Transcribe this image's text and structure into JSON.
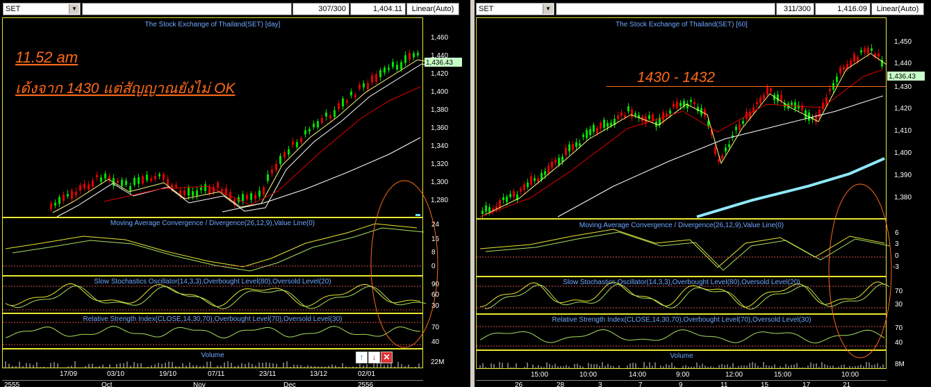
{
  "left": {
    "symbol": "SET",
    "count": "307/300",
    "price": "1,404.11",
    "scale": "Linear(Auto)",
    "title": "The Stock Exchange of Thailand(SET) [day]",
    "note_time": "11.52 am",
    "note_text": "เด้งจาก 1430 แต่สัญญาณยังไม่ OK",
    "last_price": "1,436.43",
    "price_ticks": [
      "1,460",
      "1,440",
      "1,420",
      "1,400",
      "1,380",
      "1,360",
      "1,340",
      "1,320",
      "1,300",
      "1,280"
    ],
    "macd_label": "Moving Average Convergence / Divergence(26,12,9),Value Line(0)",
    "macd_ticks": [
      "24",
      "16",
      "8",
      "0"
    ],
    "stoch_label": "Slow Stochastics Oscillator(14,3,3),Overbought Level(80),Oversold Level(20)",
    "stoch_ticks": [
      "90",
      "60",
      "30"
    ],
    "rsi_label": "Relative Strength Index(CLOSE,14,30,70),Overbought Level(70),Oversold Level(30)",
    "rsi_ticks": [
      "70",
      "40"
    ],
    "vol_label": "Volume",
    "vol_tick": "22M",
    "date_row1": [
      "17/09",
      "03/10",
      "19/10",
      "07/11",
      "23/11",
      "13/12",
      "02/01"
    ],
    "date_row2": [
      "2555",
      "Oct",
      "Nov",
      "Dec",
      "2556"
    ]
  },
  "right": {
    "symbol": "SET",
    "count": "311/300",
    "price": "1,416.09",
    "scale": "Linear(Auto)",
    "title": "The Stock Exchange of Thailand(SET) [60]",
    "note_range": "1430 - 1432",
    "last_price": "1,436.43",
    "price_ticks": [
      "1,450",
      "1,440",
      "1,430",
      "1,420",
      "1,410",
      "1,400",
      "1,390",
      "1,380"
    ],
    "macd_label": "Moving Average Convergence / Divergence(26,12,9),Value Line(0)",
    "macd_ticks": [
      "6",
      "3",
      "0",
      "-3"
    ],
    "stoch_label": "Slow Stochastics Oscillator(14,3,3),Overbought Level(80),Oversold Level(20)",
    "stoch_ticks": [
      "70",
      "30"
    ],
    "rsi_label": "Relative Strength Index(CLOSE,14,30,70),Overbought Level(70),Oversold Level(30)",
    "rsi_ticks": [
      "70",
      "40"
    ],
    "vol_label": "Volume",
    "vol_tick": "8M",
    "date_row1": [
      "15:00",
      "10:00",
      "14:00",
      "9:00",
      "12:00",
      "15:00",
      "10:00"
    ],
    "date_row2": [
      "26",
      "28",
      "3",
      "7",
      "9",
      "11",
      "15",
      "17",
      "21"
    ]
  },
  "colors": {
    "accent": "#ff6a1a",
    "up": "#00e000",
    "down": "#e00000",
    "frame": "#e8e830"
  }
}
